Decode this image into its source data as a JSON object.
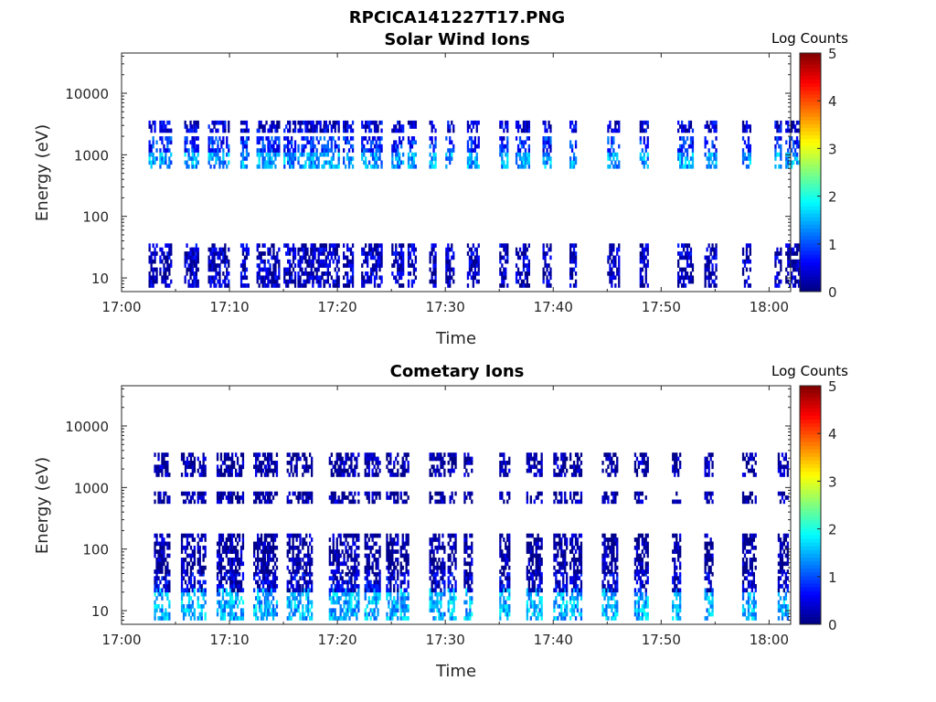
{
  "figure": {
    "title": "RPCICA141227T17.PNG"
  },
  "colormap": [
    "#00007f",
    "#0000ff",
    "#007fff",
    "#00ffff",
    "#7fff7f",
    "#ffff00",
    "#ff7f00",
    "#ff0000",
    "#7f0000"
  ],
  "chart_data": [
    {
      "type": "heatmap",
      "title": "Solar Wind Ions",
      "xlabel": "Time",
      "ylabel": "Energy (eV)",
      "xlim": [
        "17:00",
        "18:02"
      ],
      "ylim": [
        6,
        45000
      ],
      "y_scale": "log",
      "x_ticks": [
        "17:00",
        "17:10",
        "17:20",
        "17:30",
        "17:40",
        "17:50",
        "18:00"
      ],
      "y_ticks": [
        "10",
        "100",
        "1000",
        "10000"
      ],
      "colorbar": {
        "label": "Log Counts",
        "range": [
          0,
          5
        ],
        "ticks": [
          "0",
          "1",
          "2",
          "3",
          "4",
          "5"
        ]
      },
      "burst_times_min": [
        2.5,
        3.5,
        5.8,
        6.5,
        8.0,
        9.0,
        11.0,
        12.5,
        13.5,
        15.0,
        16.3,
        17.5,
        18.7,
        20.5,
        22.2,
        23.5,
        25.0,
        26.5,
        28.5,
        30.0,
        32.0,
        35.0,
        36.5,
        39.0,
        41.5,
        45.0,
        48.0,
        51.5,
        54.0,
        57.5,
        60.5,
        61.5
      ],
      "bands": [
        {
          "e_low": 600,
          "e_high": 950,
          "level": 1.4
        },
        {
          "e_low": 1100,
          "e_high": 1900,
          "level": 0.8
        },
        {
          "e_low": 2300,
          "e_high": 3200,
          "level": 0.4
        },
        {
          "e_low": 7,
          "e_high": 35,
          "level": 0.3
        }
      ]
    },
    {
      "type": "heatmap",
      "title": "Cometary Ions",
      "xlabel": "Time",
      "ylabel": "Energy (eV)",
      "xlim": [
        "17:00",
        "18:02"
      ],
      "ylim": [
        6,
        45000
      ],
      "y_scale": "log",
      "x_ticks": [
        "17:00",
        "17:10",
        "17:20",
        "17:30",
        "17:40",
        "17:50",
        "18:00"
      ],
      "y_ticks": [
        "10",
        "100",
        "1000",
        "10000"
      ],
      "colorbar": {
        "label": "Log Counts",
        "range": [
          0,
          5
        ],
        "ticks": [
          "0",
          "1",
          "2",
          "3",
          "4",
          "5"
        ]
      },
      "burst_times_min": [
        3.0,
        5.5,
        7.0,
        8.8,
        10.0,
        12.2,
        13.3,
        15.3,
        16.7,
        19.2,
        20.7,
        22.5,
        24.5,
        25.8,
        28.5,
        30.2,
        31.7,
        35.0,
        37.5,
        40.0,
        41.5,
        44.5,
        47.5,
        51.0,
        54.0,
        57.5,
        60.8
      ],
      "bands": [
        {
          "e_low": 7,
          "e_high": 20,
          "level": 1.5
        },
        {
          "e_low": 20,
          "e_high": 40,
          "level": 0.4
        },
        {
          "e_low": 40,
          "e_high": 170,
          "level": 0.1
        },
        {
          "e_low": 550,
          "e_high": 800,
          "level": 0.1
        },
        {
          "e_low": 1500,
          "e_high": 3200,
          "level": 0.1
        }
      ]
    }
  ]
}
